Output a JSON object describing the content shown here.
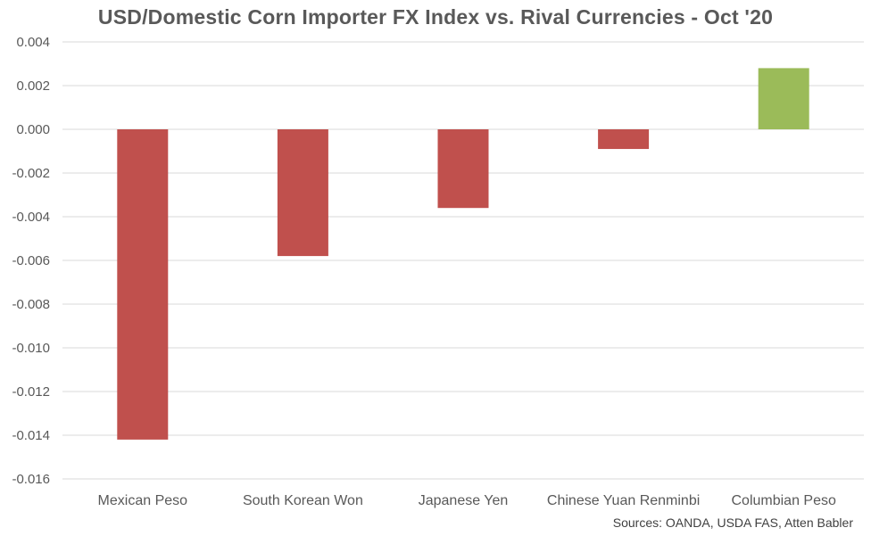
{
  "chart_data": {
    "type": "bar",
    "title": "USD/Domestic Corn Importer FX Index vs. Rival Currencies - Oct '20",
    "xlabel": "",
    "ylabel": "",
    "categories": [
      "Mexican Peso",
      "South Korean Won",
      "Japanese Yen",
      "Chinese Yuan Renminbi",
      "Columbian Peso"
    ],
    "values": [
      -0.0142,
      -0.0058,
      -0.0036,
      -0.0009,
      0.0028
    ],
    "ylim": [
      -0.016,
      0.004
    ],
    "yticks": [
      0.004,
      0.002,
      0.0,
      -0.002,
      -0.004,
      -0.006,
      -0.008,
      -0.01,
      -0.012,
      -0.014,
      -0.016
    ],
    "ytick_labels": [
      "0.004",
      "0.002",
      "0.000",
      "-0.002",
      "-0.004",
      "-0.006",
      "-0.008",
      "-0.010",
      "-0.012",
      "-0.014",
      "-0.016"
    ],
    "grid": true,
    "legend": "none",
    "colors": {
      "negative": "#C0504D",
      "positive": "#9BBB59",
      "grid": "#D9D9D9"
    }
  },
  "source_note": "Sources: OANDA, USDA FAS, Atten Babler"
}
